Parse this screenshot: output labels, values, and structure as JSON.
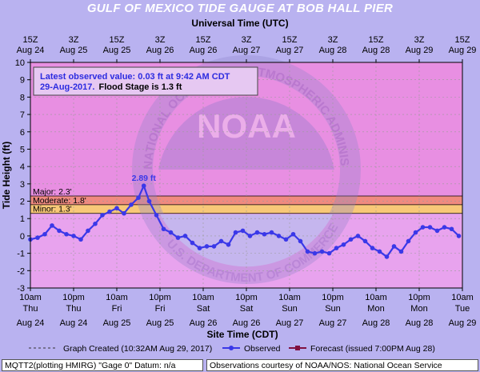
{
  "title": "GULF OF MEXICO TIDE GAUGE AT BOB HALL PIER",
  "top_axis_title": "Universal Time (UTC)",
  "y_axis_title": "Tide Height (ft)",
  "x_axis_title": "Site Time (CDT)",
  "annotation": {
    "line1": "Latest observed value: 0.03 ft at 9:42 AM CDT",
    "line2_blue": "29-Aug-2017.",
    "line2_black": "Flood Stage is 1.3 ft"
  },
  "legend": {
    "graph_created": "Graph Created (10:32AM Aug 29, 2017)",
    "observed": "Observed",
    "forecast": "Forecast (issued 7:00PM Aug 28)"
  },
  "footer": {
    "left": "MQTT2(plotting HMIRG) \"Gage 0\" Datum: n/a",
    "right": "Observations courtesy of NOAA/NOS: National Ocean Service"
  },
  "watermark": {
    "logo": "NOAA",
    "ring_top": "NATIONAL OCEANIC AND ATMOSPHERIC ADMINISTRATION",
    "ring_bottom": "U.S. DEPARTMENT OF COMMERCE"
  },
  "colors": {
    "background": "#b9b2f0",
    "plot_area": "#e8a3ee",
    "major_band": "#e87fd8",
    "moderate_band": "#f08a80",
    "minor_band": "#f8c878",
    "observed_line": "#3a38e8",
    "forecast_line": "#801040"
  },
  "chart_data": {
    "type": "line",
    "ylabel": "Tide Height (ft)",
    "xlabel": "Site Time (CDT)",
    "ylim": [
      -3,
      10
    ],
    "y_ticks": [
      "-3",
      "-2",
      "-1",
      "0",
      "1",
      "2",
      "3",
      "4",
      "5",
      "6",
      "7",
      "8",
      "9",
      "10"
    ],
    "x_ticks_bottom": [
      {
        "time": "10am",
        "day": "Thu",
        "date": "Aug 24"
      },
      {
        "time": "10pm",
        "day": "Thu",
        "date": "Aug 24"
      },
      {
        "time": "10am",
        "day": "Fri",
        "date": "Aug 25"
      },
      {
        "time": "10pm",
        "day": "Fri",
        "date": "Aug 25"
      },
      {
        "time": "10am",
        "day": "Sat",
        "date": "Aug 26"
      },
      {
        "time": "10pm",
        "day": "Sat",
        "date": "Aug 26"
      },
      {
        "time": "10am",
        "day": "Sun",
        "date": "Aug 27"
      },
      {
        "time": "10pm",
        "day": "Sun",
        "date": "Aug 27"
      },
      {
        "time": "10am",
        "day": "Mon",
        "date": "Aug 28"
      },
      {
        "time": "10pm",
        "day": "Mon",
        "date": "Aug 28"
      },
      {
        "time": "10am",
        "day": "Tue",
        "date": "Aug 29"
      }
    ],
    "x_ticks_top": [
      {
        "time": "15Z",
        "date": "Aug 24"
      },
      {
        "time": "3Z",
        "date": "Aug 25"
      },
      {
        "time": "15Z",
        "date": "Aug 25"
      },
      {
        "time": "3Z",
        "date": "Aug 26"
      },
      {
        "time": "15Z",
        "date": "Aug 26"
      },
      {
        "time": "3Z",
        "date": "Aug 27"
      },
      {
        "time": "15Z",
        "date": "Aug 27"
      },
      {
        "time": "3Z",
        "date": "Aug 28"
      },
      {
        "time": "15Z",
        "date": "Aug 28"
      },
      {
        "time": "3Z",
        "date": "Aug 29"
      },
      {
        "time": "15Z",
        "date": "Aug 29"
      }
    ],
    "x_range_hours": [
      0,
      120
    ],
    "flood_categories": [
      {
        "name": "Major",
        "label": "Major: 2.3'",
        "value": 2.3,
        "color": "#e87fd8"
      },
      {
        "name": "Moderate",
        "label": "Moderate: 1.8'",
        "value": 1.8,
        "color": "#f08a80"
      },
      {
        "name": "Minor",
        "label": "Minor: 1.3'",
        "value": 1.3,
        "color": "#f8c878"
      }
    ],
    "peak": {
      "label": "2.89 ft",
      "hour": 31.5,
      "value": 2.89
    },
    "series": [
      {
        "name": "Observed",
        "x_hours": [
          0,
          2,
          4,
          6,
          8,
          10,
          12,
          14,
          16,
          18,
          20,
          22,
          24,
          26,
          28,
          30,
          31.5,
          33,
          35,
          37,
          39,
          41,
          43,
          45,
          47,
          49,
          51,
          53,
          55,
          57,
          59,
          61,
          63,
          65,
          67,
          69,
          71,
          73,
          75,
          77,
          79,
          81,
          83,
          85,
          87,
          89,
          91,
          93,
          95,
          97,
          99,
          101,
          103,
          105,
          107,
          109,
          111,
          113,
          115,
          117,
          119
        ],
        "values": [
          -0.2,
          -0.1,
          0.1,
          0.6,
          0.3,
          0.1,
          0.0,
          -0.2,
          0.3,
          0.7,
          1.2,
          1.4,
          1.6,
          1.3,
          1.8,
          2.2,
          2.89,
          2.0,
          1.2,
          0.4,
          0.2,
          -0.1,
          0.0,
          -0.4,
          -0.7,
          -0.6,
          -0.6,
          -0.3,
          -0.5,
          0.2,
          0.3,
          0.0,
          0.2,
          0.1,
          0.2,
          0.0,
          -0.2,
          0.1,
          -0.3,
          -0.9,
          -1.0,
          -0.9,
          -1.0,
          -0.7,
          -0.5,
          -0.2,
          0.0,
          -0.3,
          -0.7,
          -0.9,
          -1.2,
          -0.6,
          -0.9,
          -0.3,
          0.2,
          0.5,
          0.5,
          0.3,
          0.5,
          0.4,
          0.0
        ]
      }
    ]
  }
}
